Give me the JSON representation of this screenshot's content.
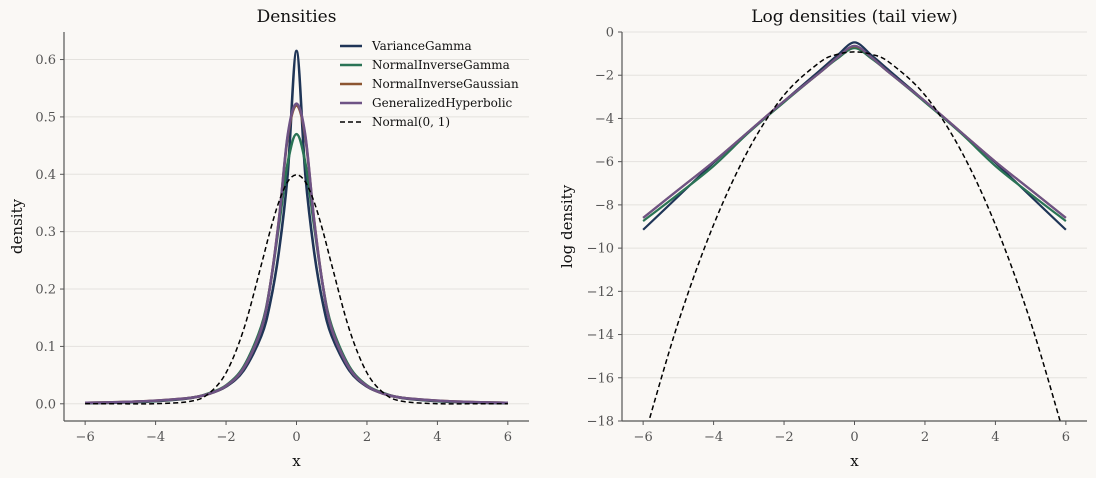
{
  "chart_data": [
    {
      "type": "line",
      "title": "Densities",
      "xlabel": "x",
      "ylabel": "density",
      "xlim": [
        -6.6,
        6.6
      ],
      "ylim": [
        -0.03,
        0.648
      ],
      "xticks": [
        -6,
        -4,
        -2,
        0,
        2,
        4,
        6
      ],
      "xtick_labels": [
        "−6",
        "−4",
        "−2",
        "0",
        "2",
        "4",
        "6"
      ],
      "yticks": [
        0,
        0.1,
        0.2,
        0.3,
        0.4,
        0.5,
        0.6
      ],
      "ytick_labels": [
        "0.0",
        "0.1",
        "0.2",
        "0.3",
        "0.4",
        "0.5",
        "0.6"
      ],
      "grid": "horizontal",
      "legend": "top-right",
      "x": [
        -6,
        -5,
        -4,
        -3,
        -2.5,
        -2,
        -1.5,
        -1,
        -0.75,
        -0.5,
        -0.25,
        0,
        0.25,
        0.5,
        0.75,
        1,
        1.5,
        2,
        2.5,
        3,
        4,
        5,
        6
      ],
      "series": [
        {
          "name": "VarianceGamma",
          "color": "#1f3557",
          "width": 2.6,
          "dash": "",
          "values": [
            0.0011,
            0.0022,
            0.0045,
            0.01,
            0.017,
            0.03,
            0.058,
            0.118,
            0.175,
            0.265,
            0.4,
            0.615,
            0.4,
            0.265,
            0.175,
            0.118,
            0.058,
            0.03,
            0.017,
            0.01,
            0.0045,
            0.0022,
            0.0011
          ]
        },
        {
          "name": "NormalInverseGamma",
          "color": "#2a7355",
          "width": 2.6,
          "dash": "",
          "values": [
            0.0015,
            0.0027,
            0.005,
            0.0105,
            0.018,
            0.032,
            0.065,
            0.135,
            0.205,
            0.31,
            0.42,
            0.47,
            0.42,
            0.31,
            0.205,
            0.135,
            0.065,
            0.032,
            0.018,
            0.0105,
            0.005,
            0.0027,
            0.0015
          ]
        },
        {
          "name": "NormalInverseGaussian",
          "color": "#8c5530",
          "width": 2.6,
          "dash": "",
          "values": [
            0.0017,
            0.003,
            0.0055,
            0.0105,
            0.017,
            0.031,
            0.062,
            0.13,
            0.205,
            0.32,
            0.465,
            0.52,
            0.465,
            0.32,
            0.205,
            0.13,
            0.062,
            0.031,
            0.017,
            0.0105,
            0.0055,
            0.003,
            0.0017
          ]
        },
        {
          "name": "GeneralizedHyperbolic",
          "color": "#6e5385",
          "width": 2.6,
          "dash": "",
          "values": [
            0.0017,
            0.003,
            0.0055,
            0.0105,
            0.017,
            0.031,
            0.062,
            0.13,
            0.205,
            0.32,
            0.468,
            0.523,
            0.468,
            0.32,
            0.205,
            0.13,
            0.062,
            0.031,
            0.017,
            0.0105,
            0.0055,
            0.003,
            0.0017
          ]
        },
        {
          "name": "Normal(0, 1)",
          "color": "#000000",
          "width": 1.5,
          "dash": "5,3",
          "values": [
            0.0,
            1.5e-06,
            0.00013,
            0.0044,
            0.0175,
            0.054,
            0.1295,
            0.242,
            0.301,
            0.352,
            0.387,
            0.399,
            0.387,
            0.352,
            0.301,
            0.242,
            0.1295,
            0.054,
            0.0175,
            0.0044,
            0.00013,
            1.5e-06,
            0.0
          ]
        }
      ]
    },
    {
      "type": "line",
      "title": "Log densities (tail view)",
      "xlabel": "x",
      "ylabel": "log density",
      "xlim": [
        -6.6,
        6.6
      ],
      "ylim": [
        -18,
        0
      ],
      "xticks": [
        -6,
        -4,
        -2,
        0,
        2,
        4,
        6
      ],
      "xtick_labels": [
        "−6",
        "−4",
        "−2",
        "0",
        "2",
        "4",
        "6"
      ],
      "yticks": [
        -18,
        -16,
        -14,
        -12,
        -10,
        -8,
        -6,
        -4,
        -2,
        0
      ],
      "ytick_labels": [
        "−18",
        "−16",
        "−14",
        "−12",
        "−10",
        "−8",
        "−6",
        "−4",
        "−2",
        "0"
      ],
      "grid": "horizontal",
      "x": [
        -6,
        -5,
        -4,
        -3,
        -2,
        -1,
        -0.5,
        0,
        0.5,
        1,
        2,
        3,
        4,
        5,
        6
      ],
      "series": [
        {
          "name": "VarianceGamma",
          "color": "#1f3557",
          "width": 2.2,
          "dash": "",
          "values": [
            -9.15,
            -7.6,
            -6.05,
            -4.6,
            -3.2,
            -1.8,
            -1.1,
            -0.48,
            -1.1,
            -1.8,
            -3.2,
            -4.6,
            -6.05,
            -7.6,
            -9.15
          ]
        },
        {
          "name": "NormalInverseGamma",
          "color": "#2a7355",
          "width": 2.2,
          "dash": "",
          "values": [
            -8.75,
            -7.5,
            -6.2,
            -4.65,
            -3.25,
            -1.9,
            -1.25,
            -0.75,
            -1.25,
            -1.9,
            -3.25,
            -4.65,
            -6.2,
            -7.5,
            -8.75
          ]
        },
        {
          "name": "NormalInverseGaussian",
          "color": "#8c5530",
          "width": 2.2,
          "dash": "",
          "values": [
            -8.6,
            -7.3,
            -6.0,
            -4.6,
            -3.2,
            -1.9,
            -1.2,
            -0.66,
            -1.2,
            -1.9,
            -3.2,
            -4.6,
            -6.0,
            -7.3,
            -8.6
          ]
        },
        {
          "name": "GeneralizedHyperbolic",
          "color": "#6e5385",
          "width": 2.2,
          "dash": "",
          "values": [
            -8.6,
            -7.3,
            -6.0,
            -4.6,
            -3.2,
            -1.9,
            -1.2,
            -0.64,
            -1.2,
            -1.9,
            -3.2,
            -4.6,
            -6.0,
            -7.3,
            -8.6
          ]
        },
        {
          "name": "Normal(0, 1)",
          "color": "#000000",
          "width": 1.5,
          "dash": "5,3",
          "values": [
            -18.92,
            -13.42,
            -8.92,
            -5.42,
            -2.92,
            -1.42,
            -1.04,
            -0.92,
            -1.04,
            -1.42,
            -2.92,
            -5.42,
            -8.92,
            -13.42,
            -18.92
          ]
        }
      ]
    }
  ]
}
